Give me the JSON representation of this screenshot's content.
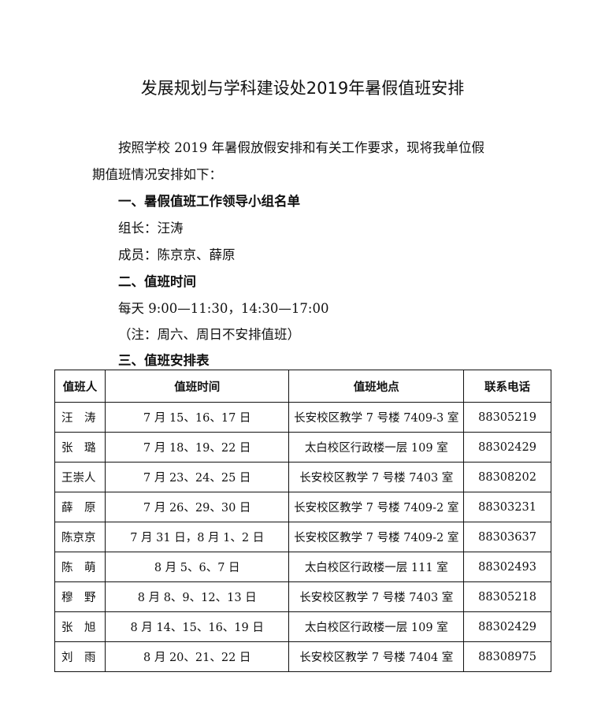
{
  "title": "发展规划与学科建设处2019年暑假值班安排",
  "intro_line1": "按照学校 2019 年暑假放假安排和有关工作要求，现将我单位假",
  "intro_line2": "期值班情况安排如下：",
  "section1": "一、暑假值班工作领导小组名单",
  "leader": "组长：汪涛",
  "members": "成员：陈京京、薛原",
  "section2": "二、值班时间",
  "hours": "每天 9:00—11:30，14:30—17:00",
  "note": "（注：周六、周日不安排值班）",
  "section3": "三、值班安排表",
  "table": {
    "headers": [
      "值班人",
      "值班时间",
      "值班地点",
      "联系电话"
    ],
    "rows": [
      [
        "汪　涛",
        "7 月 15、16、17 日",
        "长安校区教学 7 号楼 7409-3 室",
        "88305219"
      ],
      [
        "张　璐",
        "7 月 18、19、22 日",
        "太白校区行政楼一层 109 室",
        "88302429"
      ],
      [
        "王崇人",
        "7 月 23、24、25 日",
        "长安校区教学 7 号楼 7403 室",
        "88308202"
      ],
      [
        "薛　原",
        "7 月 26、29、30 日",
        "长安校区教学 7 号楼 7409-2 室",
        "88303231"
      ],
      [
        "陈京京",
        "7 月 31 日，8 月 1、2 日",
        "长安校区教学 7 号楼 7409-2 室",
        "88303637"
      ],
      [
        "陈　萌",
        "8 月 5、6、7 日",
        "太白校区行政楼一层 111 室",
        "88302493"
      ],
      [
        "穆　野",
        "8 月 8、9、12、13 日",
        "长安校区教学 7 号楼 7403 室",
        "88305218"
      ],
      [
        "张　旭",
        "8 月 14、15、16、19 日",
        "太白校区行政楼一层 109 室",
        "88302429"
      ],
      [
        "刘　雨",
        "8 月 20、21、22 日",
        "长安校区教学 7 号楼 7404 室",
        "88308975"
      ]
    ]
  }
}
